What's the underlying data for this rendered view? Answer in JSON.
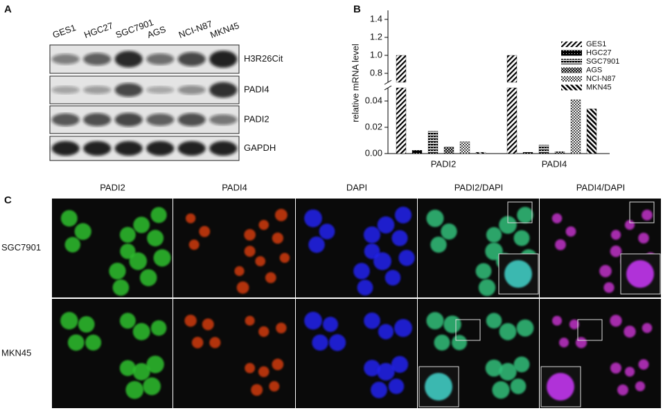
{
  "panel_a": {
    "label": "A",
    "lanes": [
      "GES1",
      "HGC27",
      "SGC7901",
      "AGS",
      "NCI-N87",
      "MKN45"
    ],
    "bands": [
      "H3R26Cit",
      "PADI4",
      "PADI2",
      "GAPDH"
    ]
  },
  "chart_data": {
    "type": "bar",
    "panel_label": "B",
    "y_label": "relative mRNA level",
    "categories": [
      "PADI2",
      "PADI4"
    ],
    "series": [
      {
        "name": "GES1",
        "color": "#000000",
        "values": [
          1.0,
          1.0
        ]
      },
      {
        "name": "HGC27",
        "color": "#000000",
        "values": [
          0.0025,
          0.001
        ]
      },
      {
        "name": "SGC7901",
        "color": "#000000",
        "values": [
          0.017,
          0.0065
        ]
      },
      {
        "name": "AGS",
        "color": "#000000",
        "values": [
          0.005,
          0.0015
        ]
      },
      {
        "name": "NCI-N87",
        "color": "#000000",
        "values": [
          0.009,
          0.041
        ]
      },
      {
        "name": "MKN45",
        "color": "#000000",
        "values": [
          0.001,
          0.034
        ]
      }
    ],
    "ylim_lower": [
      0,
      0.05
    ],
    "ylim_upper": [
      0.7,
      1.5
    ],
    "yticks": [
      {
        "value": 0,
        "label": "0.00"
      },
      0.02,
      0.04,
      0.8,
      {
        "value": 1,
        "label": "1.0"
      },
      1.2,
      1.4
    ],
    "legend": "upper right"
  },
  "panel_c": {
    "label": "C",
    "columns": [
      "PADI2",
      "PADI4",
      "DAPI",
      "PADI2/DAPI",
      "PADI4/DAPI"
    ],
    "rows": [
      "SGC7901",
      "MKN45"
    ]
  }
}
